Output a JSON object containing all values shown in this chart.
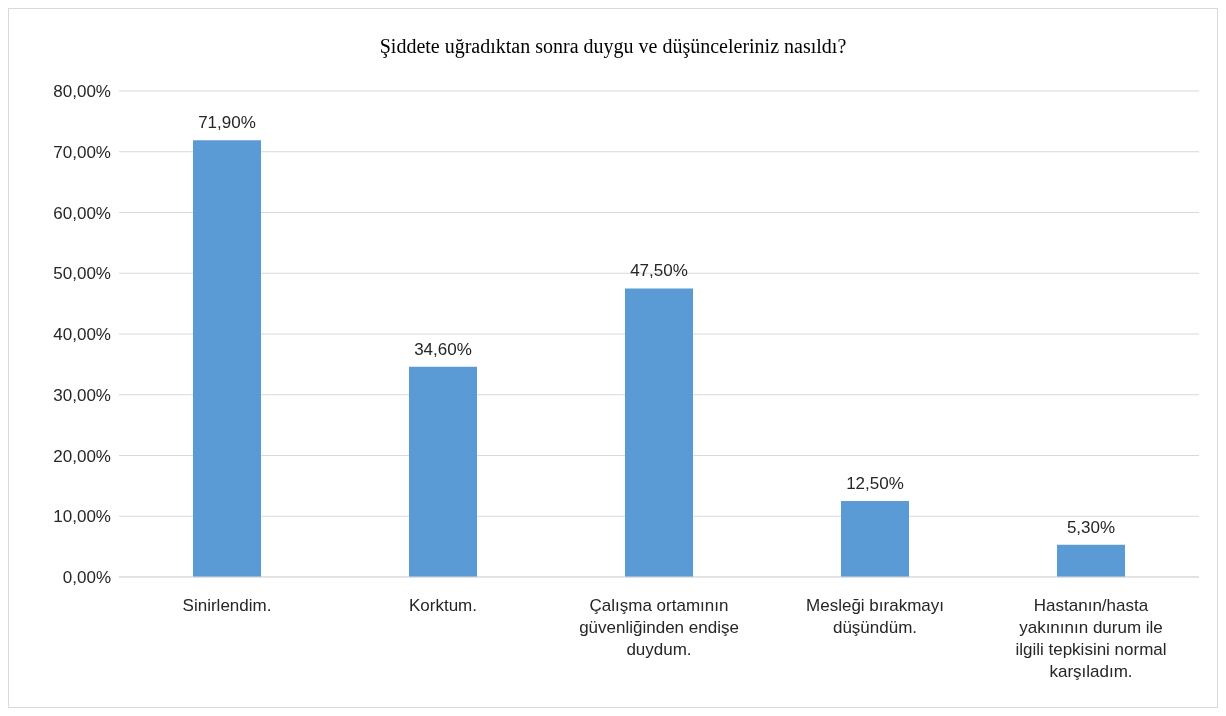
{
  "chart_data": {
    "type": "bar",
    "title": "Şiddete uğradıktan sonra duygu ve düşünceleriniz nasıldı?",
    "categories": [
      "Sinirlendim.",
      "Korktum.",
      "Çalışma ortamının güvenliğinden endişe duydum.",
      "Mesleği bırakmayı düşündüm.",
      "Hastanın/hasta yakınının durum ile ilgili tepkisini normal karşıladım."
    ],
    "values": [
      71.9,
      34.6,
      47.5,
      12.5,
      5.3
    ],
    "value_labels": [
      "71,90%",
      "34,60%",
      "47,50%",
      "12,50%",
      "5,30%"
    ],
    "color": "#5b9bd5",
    "ylim": [
      0,
      80
    ],
    "yticks": [
      {
        "value": 0,
        "label": "0,00%"
      },
      {
        "value": 10,
        "label": "10,00%"
      },
      {
        "value": 20,
        "label": "20,00%"
      },
      {
        "value": 30,
        "label": "30,00%"
      },
      {
        "value": 40,
        "label": "40,00%"
      },
      {
        "value": 50,
        "label": "50,00%"
      },
      {
        "value": 60,
        "label": "60,00%"
      },
      {
        "value": 70,
        "label": "70,00%"
      },
      {
        "value": 80,
        "label": "80,00%"
      }
    ],
    "grid": "y",
    "legend": false
  }
}
